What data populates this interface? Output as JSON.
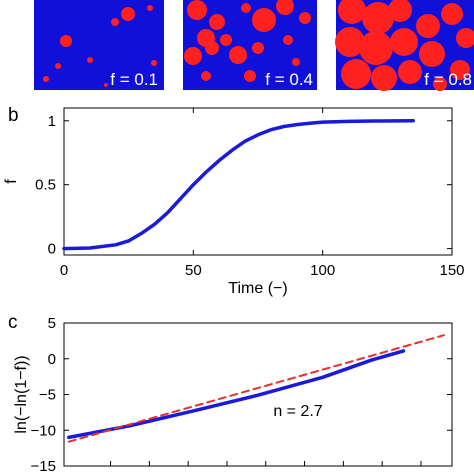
{
  "snapshots": [
    {
      "label": "f = 0.1",
      "background": "#1010d8",
      "particle_color": "#ff2020"
    },
    {
      "label": "f = 0.4",
      "background": "#1010d8",
      "particle_color": "#ff2020"
    },
    {
      "label": "f = 0.8",
      "background": "#1010d8",
      "particle_color": "#ff2020"
    }
  ],
  "chart_data": [
    {
      "panel": "b",
      "type": "line",
      "xlabel": "Time (−)",
      "ylabel": "f",
      "xlim": [
        0,
        150
      ],
      "ylim": [
        -0.05,
        1.1
      ],
      "xticks": [
        0,
        50,
        100,
        150
      ],
      "xtick_labels": [
        "0",
        "50",
        "100",
        "150"
      ],
      "yticks": [
        0,
        0.5,
        1
      ],
      "ytick_labels": [
        "0",
        "0.5",
        "1"
      ],
      "series": [
        {
          "color": "#1a1adc",
          "x": [
            0,
            10,
            20,
            25,
            30,
            35,
            40,
            45,
            50,
            55,
            60,
            65,
            70,
            75,
            80,
            85,
            90,
            95,
            100,
            110,
            120,
            135
          ],
          "y": [
            0,
            0.005,
            0.03,
            0.06,
            0.12,
            0.19,
            0.28,
            0.39,
            0.5,
            0.6,
            0.69,
            0.77,
            0.84,
            0.89,
            0.93,
            0.955,
            0.97,
            0.98,
            0.99,
            0.995,
            0.998,
            1.0
          ]
        }
      ]
    },
    {
      "panel": "c",
      "type": "line",
      "xlabel": "",
      "ylabel": "ln(−ln(1−f))",
      "xlim": [
        -0.2,
        2.2
      ],
      "ylim": [
        -15,
        5
      ],
      "yticks": [
        -15,
        -10,
        -5,
        0,
        5
      ],
      "ytick_labels": [
        "−15",
        "−10",
        "−5",
        "0",
        "5"
      ],
      "annotation": "n = 2.7",
      "series": [
        {
          "color": "#1a1adc",
          "style": "solid",
          "x": [
            -0.17,
            0.2,
            0.6,
            1.0,
            1.4,
            1.7,
            1.9
          ],
          "y": [
            -11.0,
            -9.4,
            -7.3,
            -5.1,
            -2.6,
            -0.2,
            1.1
          ]
        },
        {
          "color": "#e8302a",
          "style": "dashed",
          "x": [
            -0.17,
            2.15
          ],
          "y": [
            -11.6,
            3.3
          ]
        }
      ]
    }
  ]
}
